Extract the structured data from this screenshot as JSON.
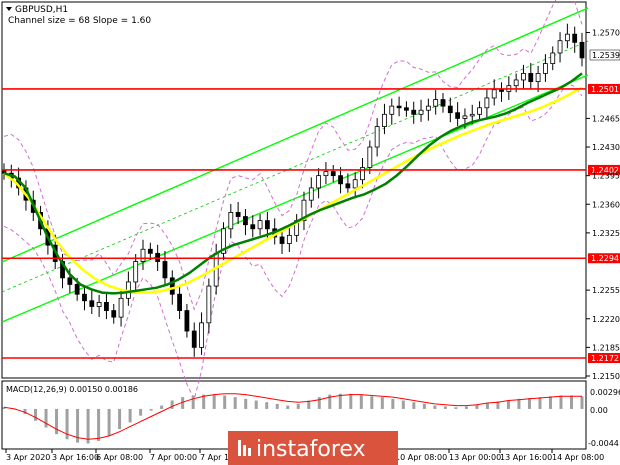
{
  "header": {
    "symbol_label": "GBPUSD,H1",
    "channel_label": "Channel size = 68 Slope = 1.60"
  },
  "macd": {
    "label": "MACD(12,26,9) 0.00150 0.00186",
    "ticks": [
      "0.00296",
      "0.00",
      "-0.0044"
    ]
  },
  "watermark": {
    "text": "instaforex",
    "color": "#d9533d"
  },
  "colors": {
    "candle": "#000000",
    "channel": "#00ff00",
    "channel_mid": "#00cc00",
    "ma_fast": "#008000",
    "ma_slow": "#ffff00",
    "bollinger": "#d070d0",
    "level": "#ff0000",
    "macd_hist": "#a0a0a0",
    "macd_signal": "#ff0000"
  },
  "chart_data": {
    "type": "candlestick",
    "y_ticks": [
      "1.2570",
      "1.2465",
      "1.2430",
      "1.2395",
      "1.2360",
      "1.2325",
      "1.2255",
      "1.2220",
      "1.2185",
      "1.2150"
    ],
    "ylim": [
      1.215,
      1.26
    ],
    "x_ticks": [
      "3 Apr 2020",
      "3 Apr 16:00",
      "6 Apr 08:00",
      "7 Apr 00:00",
      "7 Apr 16:00",
      "10 Apr 08:00",
      "13 Apr 00:00",
      "13 Apr 16:00",
      "14 Apr 08:00"
    ],
    "current_price": "1.2539",
    "levels": [
      {
        "label": "1.2501",
        "value": 1.2501
      },
      {
        "label": "1.2402",
        "value": 1.2402
      },
      {
        "label": "1.2294",
        "value": 1.2294
      },
      {
        "label": "1.2172",
        "value": 1.2172
      }
    ],
    "close": [
      1.2398,
      1.2392,
      1.238,
      1.2365,
      1.235,
      1.233,
      1.231,
      1.229,
      1.227,
      1.2262,
      1.225,
      1.2242,
      1.2235,
      1.224,
      1.223,
      1.2222,
      1.2245,
      1.2265,
      1.229,
      1.2305,
      1.23,
      1.229,
      1.227,
      1.225,
      1.223,
      1.2205,
      1.2185,
      1.2215,
      1.226,
      1.23,
      1.233,
      1.235,
      1.2345,
      1.2335,
      1.233,
      1.234,
      1.233,
      1.232,
      1.2312,
      1.2322,
      1.234,
      1.2365,
      1.238,
      1.2395,
      1.24,
      1.2395,
      1.2385,
      1.238,
      1.239,
      1.2405,
      1.243,
      1.2455,
      1.247,
      1.248,
      1.2478,
      1.2475,
      1.247,
      1.2475,
      1.248,
      1.2488,
      1.248,
      1.2472,
      1.2465,
      1.2468,
      1.247,
      1.2478,
      1.249,
      1.25,
      1.2498,
      1.2505,
      1.2512,
      1.252,
      1.251,
      1.252,
      1.2532,
      1.2545,
      1.256,
      1.2568,
      1.2558,
      1.2539
    ],
    "ma_fast": [
      1.2398,
      1.2394,
      1.238,
      1.235,
      1.232,
      1.2295,
      1.2275,
      1.2262,
      1.2256,
      1.2252,
      1.2251,
      1.2252,
      1.2254,
      1.2256,
      1.2258,
      1.2262,
      1.2268,
      1.2276,
      1.2286,
      1.2296,
      1.2304,
      1.231,
      1.2314,
      1.2318,
      1.2322,
      1.2327,
      1.2333,
      1.234,
      1.2347,
      1.2353,
      1.2358,
      1.2363,
      1.2368,
      1.2372,
      1.2378,
      1.2385,
      1.2395,
      1.2407,
      1.242,
      1.2432,
      1.2442,
      1.245,
      1.2456,
      1.2461,
      1.2464,
      1.2467,
      1.2471,
      1.2477,
      1.2484,
      1.249,
      1.2496,
      1.2502,
      1.251,
      1.252
    ],
    "ma_slow": [
      1.2398,
      1.2385,
      1.2365,
      1.234,
      1.2315,
      1.2295,
      1.228,
      1.2268,
      1.226,
      1.2255,
      1.2252,
      1.2252,
      1.2254,
      1.2258,
      1.2264,
      1.2272,
      1.2281,
      1.229,
      1.2299,
      1.2308,
      1.2317,
      1.2326,
      1.2335,
      1.2344,
      1.2353,
      1.2362,
      1.2371,
      1.238,
      1.2389,
      1.2398,
      1.2407,
      1.2416,
      1.2424,
      1.2432,
      1.2439,
      1.2446,
      1.2452,
      1.2458,
      1.2463,
      1.2468,
      1.2473,
      1.2479,
      1.2486,
      1.2494,
      1.2503
    ],
    "macd_hist": [
      0.0002,
      0.0,
      -0.0006,
      -0.0014,
      -0.0022,
      -0.003,
      -0.0036,
      -0.004,
      -0.0041,
      -0.0038,
      -0.0032,
      -0.0024,
      -0.0016,
      -0.0008,
      -0.0002,
      0.0004,
      0.001,
      0.0014,
      0.0016,
      0.0017,
      0.0017,
      0.0016,
      0.0014,
      0.0012,
      0.001,
      0.0008,
      0.0006,
      0.0004,
      0.0006,
      0.001,
      0.0014,
      0.0017,
      0.0018,
      0.0018,
      0.0017,
      0.0015,
      0.0014,
      0.0012,
      0.001,
      0.0008,
      0.0006,
      0.0004,
      0.0003,
      0.0002,
      0.0003,
      0.0005,
      0.0007,
      0.0009,
      0.001,
      0.0012,
      0.0013,
      0.0014,
      0.0015,
      0.0016,
      0.0016,
      0.0015
    ],
    "macd_signal": [
      0.0002,
      0.0,
      -0.0004,
      -0.001,
      -0.0017,
      -0.0024,
      -0.003,
      -0.0034,
      -0.0036,
      -0.0035,
      -0.0032,
      -0.0027,
      -0.0021,
      -0.0015,
      -0.0009,
      -0.0003,
      0.0003,
      0.0008,
      0.0012,
      0.0015,
      0.0017,
      0.0018,
      0.0018,
      0.0017,
      0.0015,
      0.0013,
      0.0011,
      0.0009,
      0.0008,
      0.0009,
      0.0011,
      0.0014,
      0.0016,
      0.0017,
      0.0017,
      0.0016,
      0.0015,
      0.0014,
      0.0012,
      0.001,
      0.0008,
      0.0006,
      0.0005,
      0.0004,
      0.0004,
      0.0005,
      0.0007,
      0.0008,
      0.001,
      0.0011,
      0.0012,
      0.0013,
      0.0014,
      0.0015,
      0.0015,
      0.0015
    ]
  }
}
